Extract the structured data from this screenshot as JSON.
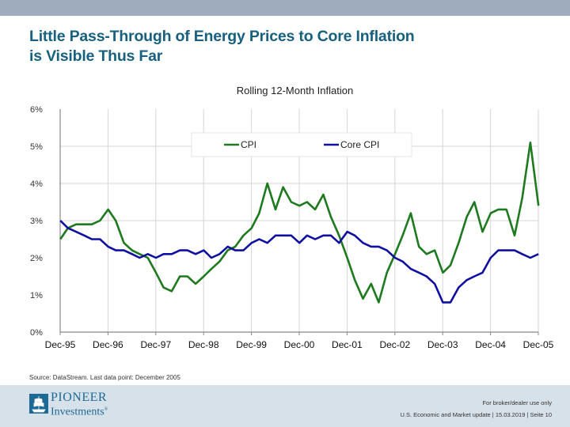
{
  "header": {
    "title_line1": "Little Pass-Through of Energy Prices to Core Inflation",
    "title_line2": "is Visible Thus Far"
  },
  "source": "Source: DataStream. Last data point: December 2005",
  "footer": {
    "logo_line1": "PIONEER",
    "logo_line2": "Investments",
    "logo_mark": "®",
    "note": "For broker/dealer use only",
    "doc_info": "U.S. Economic and Market update | 15.03.2019 | Seite 10"
  },
  "colors": {
    "cpi": "#1e7a1e",
    "core_cpi": "#1010a0",
    "title": "#17607f",
    "topbar": "#9eacbd",
    "footer_bg": "#d7e1e9"
  },
  "chart_data": {
    "type": "line",
    "title": "Rolling 12-Month Inflation",
    "xlabel": "",
    "ylabel": "",
    "ylim": [
      0,
      6
    ],
    "yticks": [
      "0%",
      "1%",
      "2%",
      "3%",
      "4%",
      "5%",
      "6%"
    ],
    "xticks": [
      "Dec-95",
      "Dec-96",
      "Dec-97",
      "Dec-98",
      "Dec-99",
      "Dec-00",
      "Dec-01",
      "Dec-02",
      "Dec-03",
      "Dec-04",
      "Dec-05"
    ],
    "x_range_years": [
      1995.917,
      2005.917
    ],
    "grid": "vertical at year ticks, horizontal at 3%-5%",
    "legend": {
      "position": "top-center",
      "entries": [
        "CPI",
        "Core CPI"
      ]
    },
    "x": [
      1995.92,
      1996.08,
      1996.25,
      1996.42,
      1996.58,
      1996.75,
      1996.92,
      1997.08,
      1997.25,
      1997.42,
      1997.58,
      1997.75,
      1997.92,
      1998.08,
      1998.25,
      1998.42,
      1998.58,
      1998.75,
      1998.92,
      1999.08,
      1999.25,
      1999.42,
      1999.58,
      1999.75,
      1999.92,
      2000.08,
      2000.25,
      2000.42,
      2000.58,
      2000.75,
      2000.92,
      2001.08,
      2001.25,
      2001.42,
      2001.58,
      2001.75,
      2001.92,
      2002.08,
      2002.25,
      2002.42,
      2002.58,
      2002.75,
      2002.92,
      2003.08,
      2003.25,
      2003.42,
      2003.58,
      2003.75,
      2003.92,
      2004.08,
      2004.25,
      2004.42,
      2004.58,
      2004.75,
      2004.92,
      2005.08,
      2005.25,
      2005.42,
      2005.58,
      2005.75,
      2005.92
    ],
    "series": [
      {
        "name": "CPI",
        "values": [
          2.5,
          2.8,
          2.9,
          2.9,
          2.9,
          3.0,
          3.3,
          3.0,
          2.4,
          2.2,
          2.1,
          2.0,
          1.6,
          1.2,
          1.1,
          1.5,
          1.5,
          1.3,
          1.5,
          1.7,
          1.9,
          2.2,
          2.3,
          2.6,
          2.8,
          3.2,
          4.0,
          3.3,
          3.9,
          3.5,
          3.4,
          3.5,
          3.3,
          3.7,
          3.1,
          2.6,
          2.0,
          1.4,
          0.9,
          1.3,
          0.8,
          1.6,
          2.1,
          2.6,
          3.2,
          2.3,
          2.1,
          2.2,
          1.6,
          1.8,
          2.4,
          3.1,
          3.5,
          2.7,
          3.2,
          3.3,
          3.3,
          2.6,
          3.6,
          5.1,
          3.4
        ]
      },
      {
        "name": "Core CPI",
        "values": [
          3.0,
          2.8,
          2.7,
          2.6,
          2.5,
          2.5,
          2.3,
          2.2,
          2.2,
          2.1,
          2.0,
          2.1,
          2.0,
          2.1,
          2.1,
          2.2,
          2.2,
          2.1,
          2.2,
          2.0,
          2.1,
          2.3,
          2.2,
          2.2,
          2.4,
          2.5,
          2.4,
          2.6,
          2.6,
          2.6,
          2.4,
          2.6,
          2.5,
          2.6,
          2.6,
          2.4,
          2.7,
          2.6,
          2.4,
          2.3,
          2.3,
          2.2,
          2.0,
          1.9,
          1.7,
          1.6,
          1.5,
          1.3,
          0.8,
          0.8,
          1.2,
          1.4,
          1.5,
          1.6,
          2.0,
          2.2,
          2.2,
          2.2,
          2.1,
          2.0,
          2.1
        ]
      }
    ]
  }
}
